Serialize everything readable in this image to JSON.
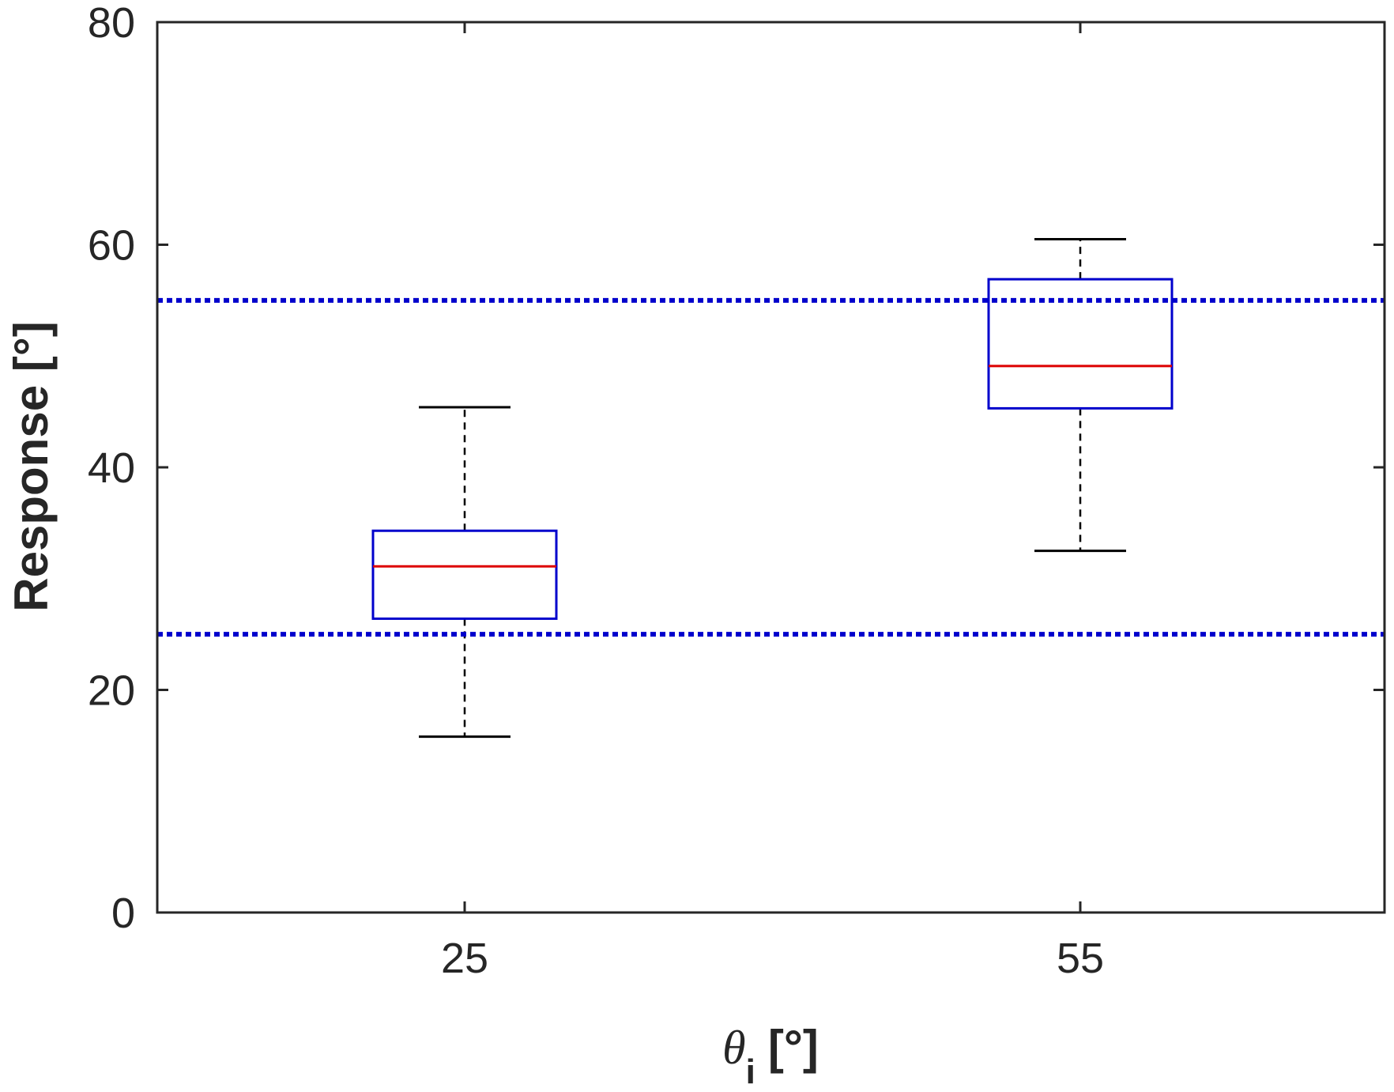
{
  "chart_data": {
    "type": "box",
    "categories": [
      "25",
      "55"
    ],
    "boxes": [
      {
        "category": "25",
        "whisker_low": 15.8,
        "q1": 26.4,
        "median": 31.1,
        "q3": 34.3,
        "whisker_high": 45.4
      },
      {
        "category": "55",
        "whisker_low": 32.5,
        "q1": 45.3,
        "median": 49.1,
        "q3": 56.9,
        "whisker_high": 60.5
      }
    ],
    "reference_lines": [
      25,
      55
    ],
    "ylim": [
      0,
      80
    ],
    "yticks": [
      "0",
      "20",
      "40",
      "60",
      "80"
    ],
    "xlabel_symbol": "θ",
    "xlabel_subscript": "i",
    "xlabel_unit": "[°]",
    "ylabel": "Response [°]",
    "grid": false,
    "colors": {
      "box": "#0000cc",
      "median": "#dd0000",
      "whisker": "#000000",
      "reference_line": "#0000cc",
      "axis": "#262626"
    }
  }
}
